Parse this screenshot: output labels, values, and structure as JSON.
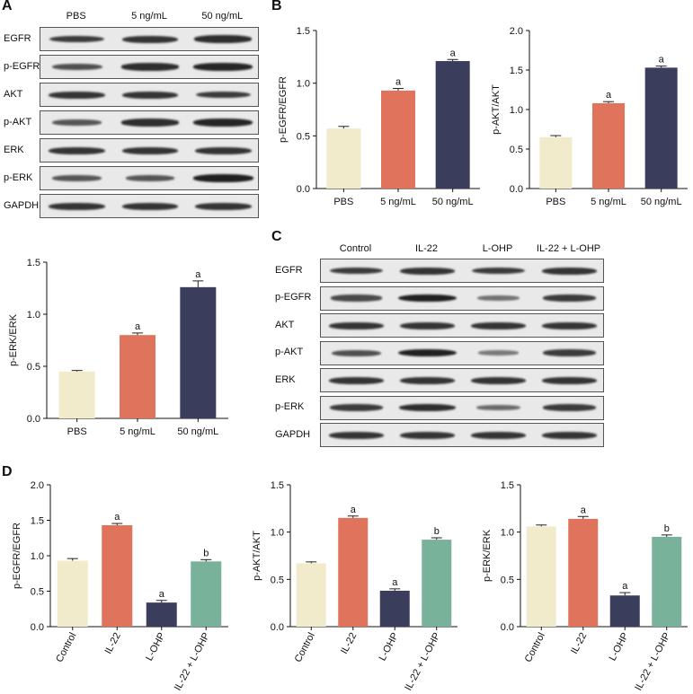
{
  "panels": {
    "A": "A",
    "B": "B",
    "C": "C",
    "D": "D"
  },
  "colors": {
    "PBS": "#f1ebcb",
    "5 ng/mL": "#e0735b",
    "50 ng/mL": "#3a3e5c",
    "Control": "#f1ebcb",
    "IL-22": "#e0735b",
    "L-OHP": "#3a3e5c",
    "IL-22 + L-OHP": "#79b29a",
    "axis": "#111111"
  },
  "blotA": {
    "lanes": [
      "PBS",
      "5 ng/mL",
      "50 ng/mL"
    ],
    "rows": [
      {
        "label": "EGFR",
        "intensity": [
          0.75,
          0.8,
          0.85
        ]
      },
      {
        "label": "p-EGFR",
        "intensity": [
          0.6,
          0.85,
          0.9
        ]
      },
      {
        "label": "AKT",
        "intensity": [
          0.8,
          0.8,
          0.75
        ]
      },
      {
        "label": "p-AKT",
        "intensity": [
          0.55,
          0.85,
          0.9
        ]
      },
      {
        "label": "ERK",
        "intensity": [
          0.8,
          0.8,
          0.8
        ]
      },
      {
        "label": "p-ERK",
        "intensity": [
          0.55,
          0.55,
          0.95
        ]
      },
      {
        "label": "GAPDH",
        "intensity": [
          0.8,
          0.8,
          0.8
        ]
      }
    ]
  },
  "blotC": {
    "lanes": [
      "Control",
      "IL-22",
      "L-OHP",
      "IL-22 + L-OHP"
    ],
    "rows": [
      {
        "label": "EGFR",
        "intensity": [
          0.75,
          0.8,
          0.75,
          0.8
        ]
      },
      {
        "label": "p-EGFR",
        "intensity": [
          0.65,
          0.95,
          0.35,
          0.75
        ]
      },
      {
        "label": "AKT",
        "intensity": [
          0.8,
          0.8,
          0.8,
          0.8
        ]
      },
      {
        "label": "p-AKT",
        "intensity": [
          0.6,
          0.95,
          0.3,
          0.75
        ]
      },
      {
        "label": "ERK",
        "intensity": [
          0.8,
          0.8,
          0.8,
          0.8
        ]
      },
      {
        "label": "p-ERK",
        "intensity": [
          0.75,
          0.85,
          0.4,
          0.75
        ]
      },
      {
        "label": "GAPDH",
        "intensity": [
          0.8,
          0.8,
          0.8,
          0.8
        ]
      }
    ]
  },
  "chart_data": [
    {
      "id": "B1",
      "type": "bar",
      "ylabel": "p-EGFR/EGFR",
      "ylim": [
        0,
        1.5
      ],
      "yticks": [
        "0.0",
        "0.5",
        "1.0",
        "1.5"
      ],
      "categories": [
        "PBS",
        "5 ng/mL",
        "50 ng/mL"
      ],
      "values": [
        0.57,
        0.93,
        1.21
      ],
      "errors": [
        0.02,
        0.02,
        0.015
      ],
      "letters": [
        "",
        "a",
        "a"
      ],
      "rotate_labels": false
    },
    {
      "id": "B2",
      "type": "bar",
      "ylabel": "p-AKT/AKT",
      "ylim": [
        0,
        2.0
      ],
      "yticks": [
        "0.0",
        "0.5",
        "1.0",
        "1.5",
        "2.0"
      ],
      "categories": [
        "PBS",
        "5 ng/mL",
        "50 ng/mL"
      ],
      "values": [
        0.65,
        1.08,
        1.53
      ],
      "errors": [
        0.02,
        0.02,
        0.02
      ],
      "letters": [
        "",
        "a",
        "a"
      ],
      "rotate_labels": false
    },
    {
      "id": "A2",
      "type": "bar",
      "ylabel": "p-ERK/ERK",
      "ylim": [
        0,
        1.5
      ],
      "yticks": [
        "0.0",
        "0.5",
        "1.0",
        "1.5"
      ],
      "categories": [
        "PBS",
        "5 ng/mL",
        "50 ng/mL"
      ],
      "values": [
        0.45,
        0.8,
        1.26
      ],
      "errors": [
        0.01,
        0.02,
        0.06
      ],
      "letters": [
        "",
        "a",
        "a"
      ],
      "rotate_labels": false
    },
    {
      "id": "D1",
      "type": "bar",
      "ylabel": "p-EGFR/EGFR",
      "ylim": [
        0,
        2.0
      ],
      "yticks": [
        "0.0",
        "0.5",
        "1.0",
        "1.5",
        "2.0"
      ],
      "categories": [
        "Control",
        "IL-22",
        "L-OHP",
        "IL-22 + L-OHP"
      ],
      "values": [
        0.93,
        1.43,
        0.34,
        0.92
      ],
      "errors": [
        0.03,
        0.025,
        0.03,
        0.025
      ],
      "letters": [
        "",
        "a",
        "a",
        "b"
      ],
      "rotate_labels": true
    },
    {
      "id": "D2",
      "type": "bar",
      "ylabel": "p-AKT/AKT",
      "ylim": [
        0,
        1.5
      ],
      "yticks": [
        "0.0",
        "0.5",
        "1.0",
        "1.5"
      ],
      "categories": [
        "Control",
        "IL-22",
        "L-OHP",
        "IL-22 + L-OHP"
      ],
      "values": [
        0.67,
        1.15,
        0.38,
        0.92
      ],
      "errors": [
        0.015,
        0.02,
        0.02,
        0.02
      ],
      "letters": [
        "",
        "a",
        "a",
        "b"
      ],
      "rotate_labels": true
    },
    {
      "id": "D3",
      "type": "bar",
      "ylabel": "p-ERK/ERK",
      "ylim": [
        0,
        1.5
      ],
      "yticks": [
        "0.0",
        "0.5",
        "1.0",
        "1.5"
      ],
      "categories": [
        "Control",
        "IL-22",
        "L-OHP",
        "IL-22 + L-OHP"
      ],
      "values": [
        1.06,
        1.14,
        0.33,
        0.95
      ],
      "errors": [
        0.015,
        0.025,
        0.03,
        0.02
      ],
      "letters": [
        "",
        "a",
        "a",
        "b"
      ],
      "rotate_labels": true
    }
  ]
}
